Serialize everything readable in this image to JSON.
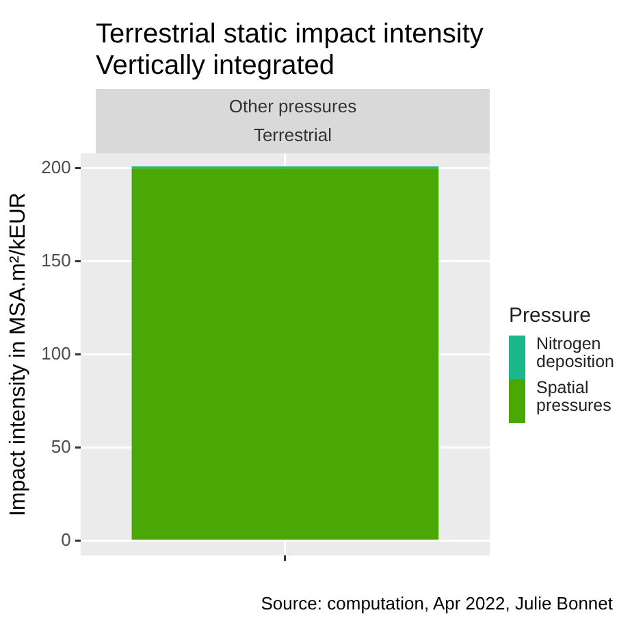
{
  "chart_data": {
    "type": "bar",
    "title": "Terrestrial static impact intensity",
    "subtitle": "Vertically integrated",
    "ylabel": "Impact intensity in MSA.m²/kEUR",
    "legend_title": "Pressure",
    "categories": [
      null
    ],
    "stacked": true,
    "series": [
      {
        "name": "Spatial pressures",
        "color": "#4aa805",
        "values": [
          200
        ]
      },
      {
        "name": "Nitrogen deposition",
        "color": "#1bb98a",
        "values": [
          1
        ]
      }
    ],
    "ylim": [
      -8,
      208
    ],
    "yticks": [
      0,
      50,
      100,
      150,
      200
    ],
    "grid": true,
    "legend": "right",
    "annotations": [
      "Other pressures",
      "Terrestrial",
      "Source: computation, Apr 2022, Julie Bonnet"
    ]
  }
}
